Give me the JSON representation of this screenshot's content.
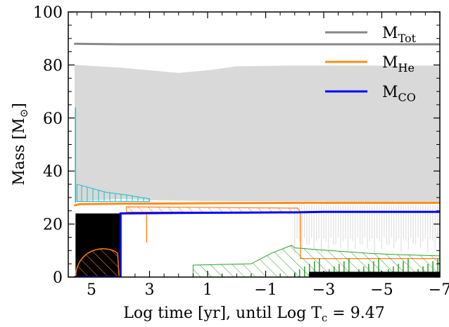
{
  "chart_data": {
    "type": "line",
    "xlabel": "Log time [yr], until Log T",
    "xlabel_sub": "c",
    "xlabel_tail": " = 9.47",
    "ylabel": "Mass [M",
    "ylabel_sub": "⊙",
    "ylabel_tail": "]",
    "xlim": [
      5.8,
      -7
    ],
    "ylim": [
      0,
      100
    ],
    "x_ticks": [
      5,
      3,
      1,
      -1,
      -3,
      -5,
      -7
    ],
    "x_tick_labels": [
      "5",
      "3",
      "1",
      "−1",
      "−3",
      "−5",
      "−7"
    ],
    "y_ticks": [
      0,
      20,
      40,
      60,
      80,
      100
    ],
    "y_tick_labels": [
      "0",
      "20",
      "40",
      "60",
      "80",
      "100"
    ],
    "legend": {
      "position": "top-right"
    },
    "series": [
      {
        "name": "M",
        "sub": "Tot",
        "color": "#888888",
        "points": [
          [
            5.6,
            88.0
          ],
          [
            4,
            87.8
          ],
          [
            0,
            87.8
          ],
          [
            -4,
            87.8
          ],
          [
            -7,
            87.8
          ]
        ]
      },
      {
        "name": "M",
        "sub": "He",
        "color": "#ff8c1a",
        "points": [
          [
            5.6,
            27.0
          ],
          [
            5.4,
            27.5
          ],
          [
            4,
            27.7
          ],
          [
            2,
            27.8
          ],
          [
            0,
            27.9
          ],
          [
            -2,
            28.0
          ],
          [
            -4,
            28.0
          ],
          [
            -7,
            28.0
          ]
        ]
      },
      {
        "name": "M",
        "sub": "CO",
        "color": "#0000ff",
        "points": [
          [
            5.6,
            0
          ],
          [
            4.0,
            0
          ],
          [
            4.0,
            24.0
          ],
          [
            2,
            24.2
          ],
          [
            0,
            24.3
          ],
          [
            -1.5,
            24.4
          ],
          [
            -2,
            24.4
          ],
          [
            -3,
            24.6
          ],
          [
            -7,
            24.6
          ]
        ]
      }
    ],
    "regions": {
      "convective_envelope": {
        "color": "#d9d9d9",
        "x_range": [
          5.55,
          -7
        ],
        "top": [
          [
            5.55,
            80
          ],
          [
            4,
            79
          ],
          [
            2,
            77
          ],
          [
            1,
            78
          ],
          [
            0,
            79.5
          ],
          [
            -2,
            79.8
          ],
          [
            -4,
            79.8
          ],
          [
            -7,
            79.8
          ]
        ],
        "bottom": [
          [
            5.55,
            28.5
          ],
          [
            4,
            29.5
          ],
          [
            3,
            29
          ],
          [
            1,
            28.7
          ],
          [
            -1,
            28.6
          ],
          [
            -2,
            28.6
          ],
          [
            -4,
            28.5
          ],
          [
            -7,
            28.5
          ]
        ]
      },
      "core_convection": {
        "color": "#000000",
        "x_range": [
          5.55,
          4.0
        ],
        "top": 24,
        "bottom": 0
      },
      "he_core_burning_hatch": {
        "color": "#ff7f0e",
        "x_range": [
          5.55,
          4.0
        ],
        "top_peak": 11
      },
      "hydrogen_shell_hatch": {
        "color": "#17becf",
        "x_range": [
          5.5,
          3.0
        ],
        "top": 35,
        "bottom": 29
      },
      "he_shell_hatch": {
        "color": "#ff7f0e",
        "x_range": [
          3.8,
          -2.2
        ],
        "top": 26.5,
        "bottom": 24.5
      },
      "carbon_burning_hatch": {
        "color": "#2ca02c",
        "x_range": [
          1.5,
          -7
        ],
        "peak": 12
      },
      "late_core_black": {
        "color": "#000000",
        "x_range": [
          -2.5,
          -7
        ],
        "top": 2
      }
    }
  }
}
